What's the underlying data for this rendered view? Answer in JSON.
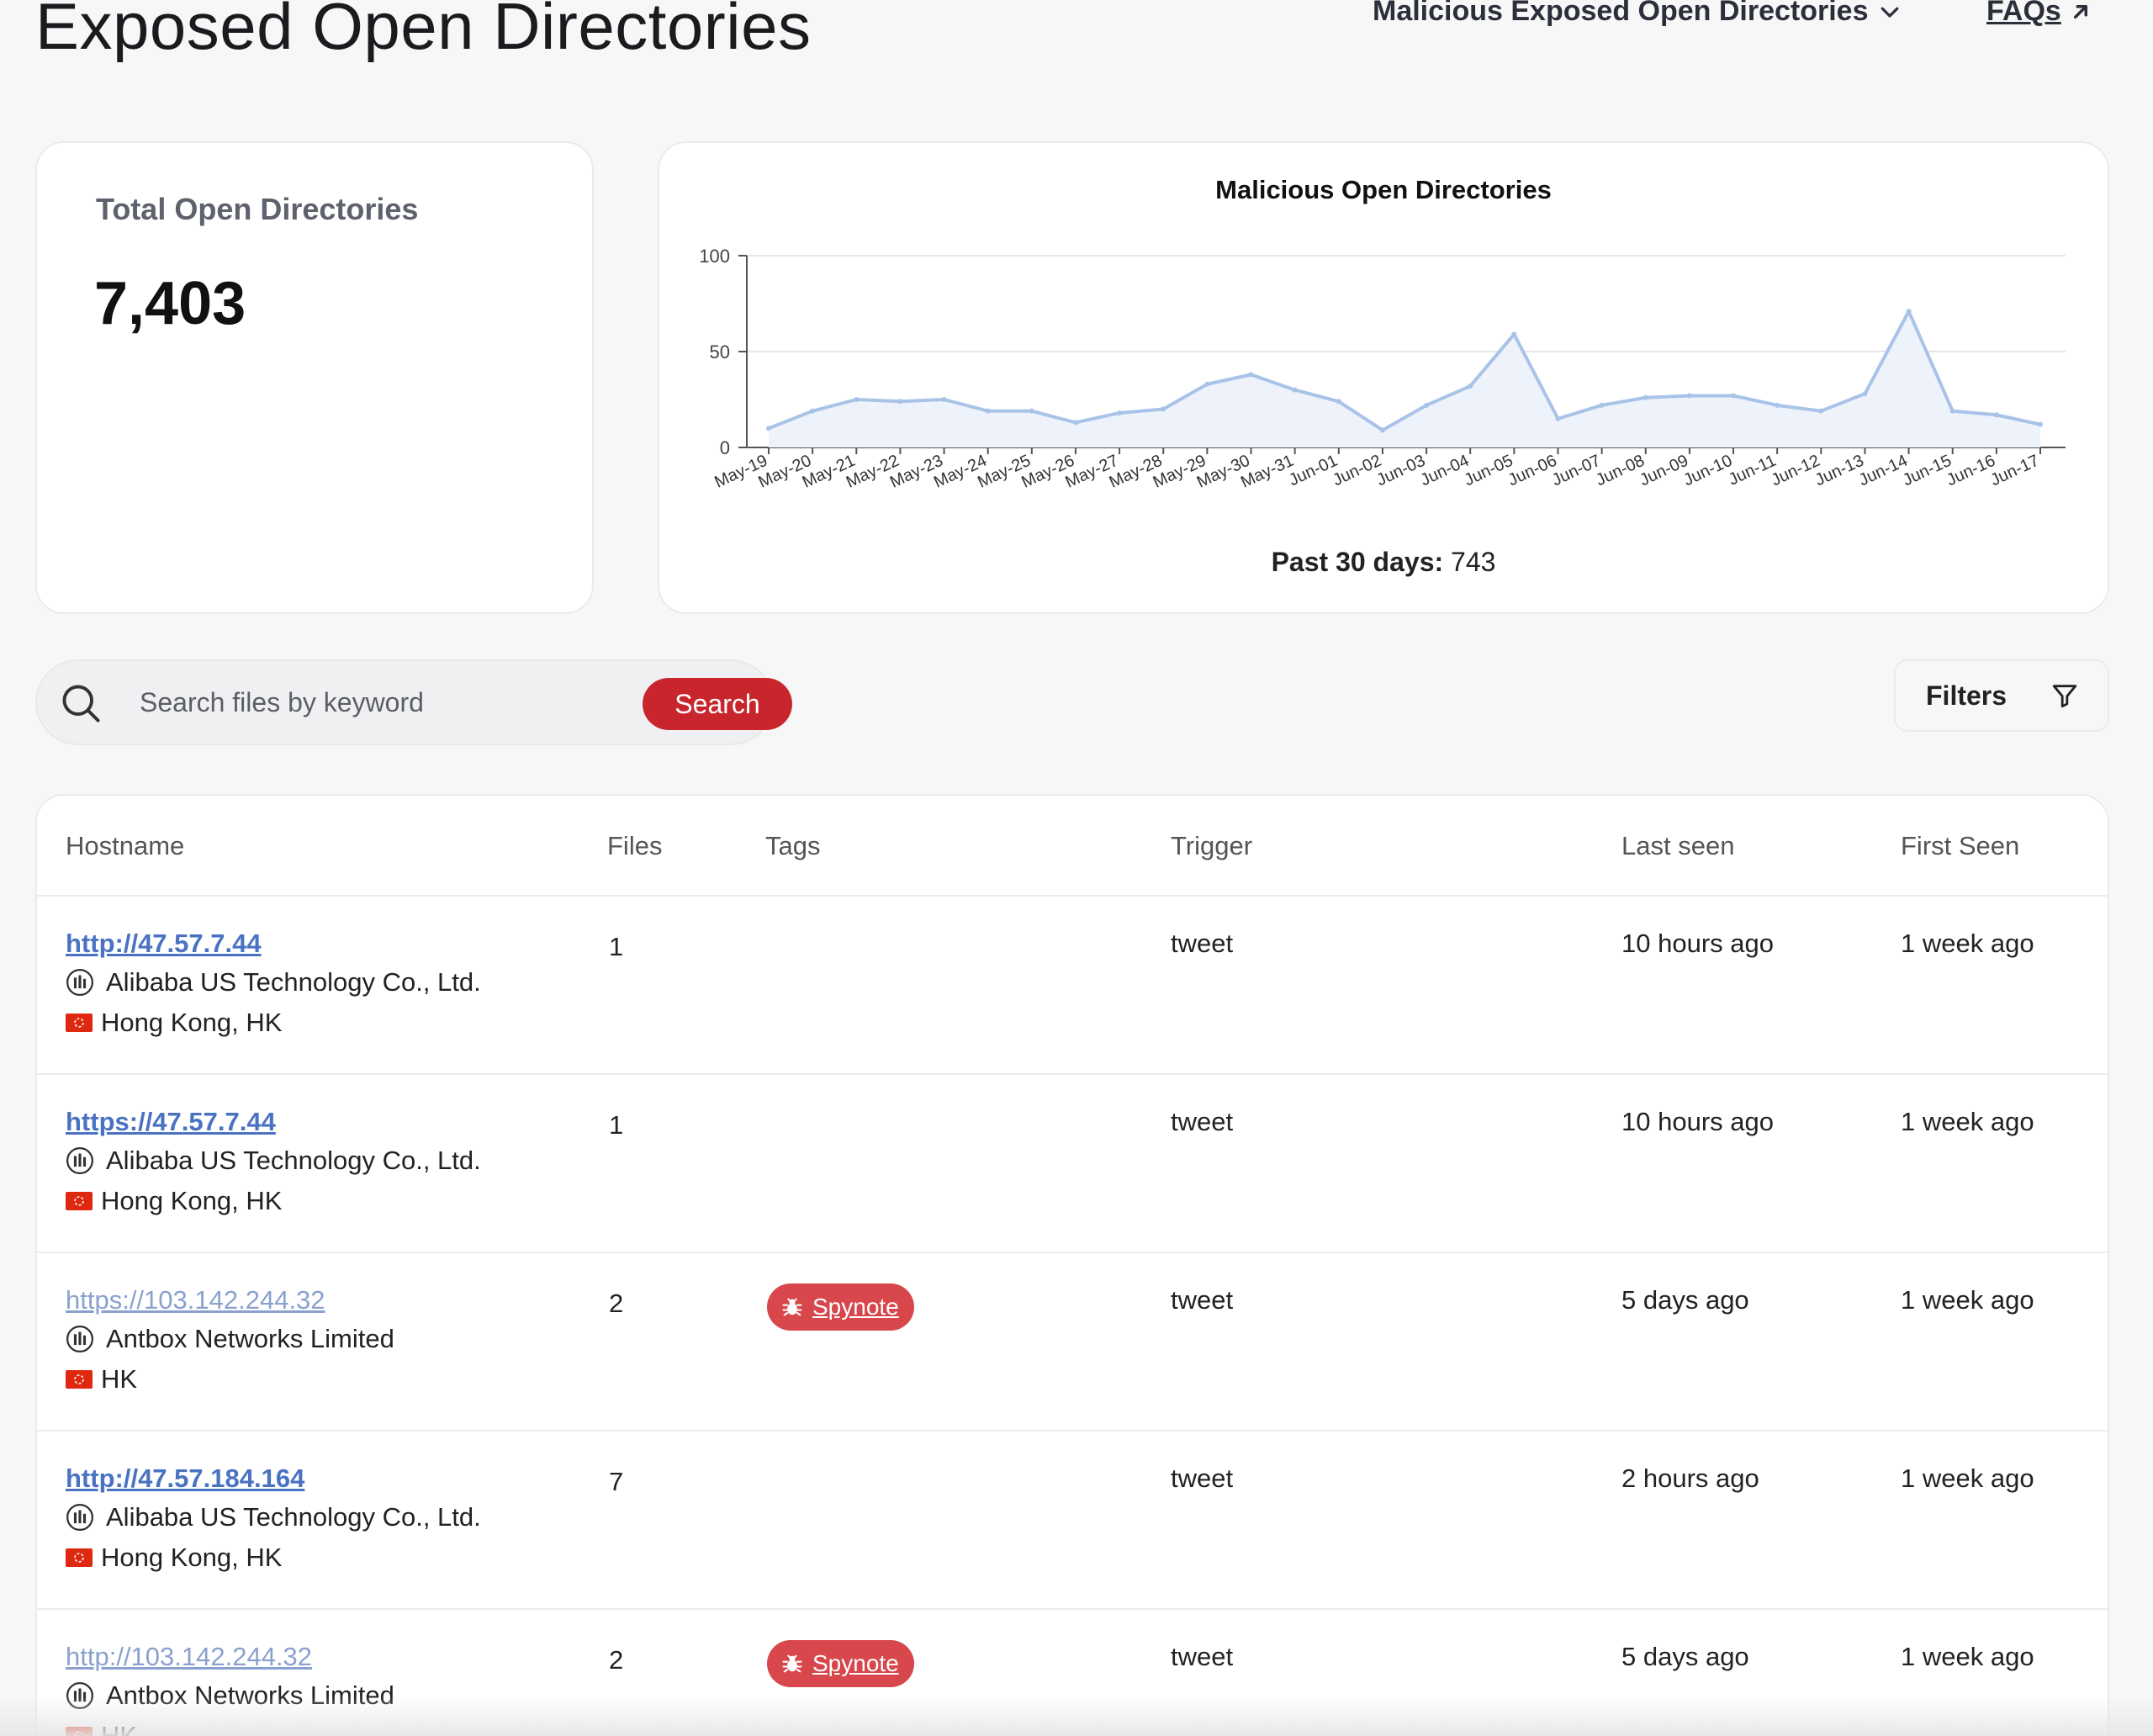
{
  "header": {
    "title": "Exposed Open Directories",
    "menu_label": "Malicious Exposed Open Directories",
    "faq_label": "FAQs"
  },
  "total_card": {
    "label": "Total Open Directories",
    "value": "7,403"
  },
  "chart_card": {
    "past_label": "Past 30 days:",
    "past_value": "743"
  },
  "chart_data": {
    "type": "area",
    "title": "Malicious Open Directories",
    "xlabel": "",
    "ylabel": "",
    "ylim": [
      0,
      100
    ],
    "yticks": [
      "0",
      "50",
      "100"
    ],
    "grid": true,
    "categories": [
      "May-19",
      "May-20",
      "May-21",
      "May-22",
      "May-23",
      "May-24",
      "May-25",
      "May-26",
      "May-27",
      "May-28",
      "May-29",
      "May-30",
      "May-31",
      "Jun-01",
      "Jun-02",
      "Jun-03",
      "Jun-04",
      "Jun-05",
      "Jun-06",
      "Jun-07",
      "Jun-08",
      "Jun-09",
      "Jun-10",
      "Jun-11",
      "Jun-12",
      "Jun-13",
      "Jun-14",
      "Jun-15",
      "Jun-16",
      "Jun-17"
    ],
    "series": [
      {
        "values": [
          10,
          19,
          25,
          24,
          25,
          19,
          19,
          13,
          18,
          20,
          33,
          38,
          30,
          24,
          9,
          22,
          32,
          59,
          15,
          22,
          26,
          27,
          27,
          22,
          19,
          28,
          71,
          19,
          17,
          12
        ]
      }
    ],
    "colors": {
      "line": "#a9c3e8",
      "fill": "#eef3fb",
      "grid": "#e6e6ea",
      "axis": "#555555"
    }
  },
  "search": {
    "placeholder": "Search files by keyword",
    "button_label": "Search"
  },
  "filters": {
    "label": "Filters"
  },
  "table": {
    "columns": {
      "hostname": "Hostname",
      "files": "Files",
      "tags": "Tags",
      "trigger": "Trigger",
      "last_seen": "Last seen",
      "first_seen": "First Seen"
    },
    "rows": [
      {
        "url": "http://47.57.7.44",
        "org": "Alibaba US Technology Co., Ltd.",
        "location": "Hong Kong, HK",
        "files": "1",
        "tag": "",
        "trigger": "tweet",
        "last_seen": "10 hours ago",
        "first_seen": "1 week ago"
      },
      {
        "url": "https://47.57.7.44",
        "org": "Alibaba US Technology Co., Ltd.",
        "location": "Hong Kong, HK",
        "files": "1",
        "tag": "",
        "trigger": "tweet",
        "last_seen": "10 hours ago",
        "first_seen": "1 week ago"
      },
      {
        "url": "https://103.142.244.32",
        "org": "Antbox Networks Limited",
        "location": "HK",
        "files": "2",
        "tag": "Spynote",
        "trigger": "tweet",
        "last_seen": "5 days ago",
        "first_seen": "1 week ago"
      },
      {
        "url": "http://47.57.184.164",
        "org": "Alibaba US Technology Co., Ltd.",
        "location": "Hong Kong, HK",
        "files": "7",
        "tag": "",
        "trigger": "tweet",
        "last_seen": "2 hours ago",
        "first_seen": "1 week ago"
      },
      {
        "url": "http://103.142.244.32",
        "org": "Antbox Networks Limited",
        "location": "HK",
        "files": "2",
        "tag": "Spynote",
        "trigger": "tweet",
        "last_seen": "5 days ago",
        "first_seen": "1 week ago"
      }
    ]
  },
  "icons": {
    "menu_chevron": "chevron-down-icon",
    "faq_arrow": "arrow-up-right-icon",
    "search": "search-icon",
    "filter": "filter-icon",
    "org": "building-icon",
    "flag": "hong-kong-flag-icon",
    "tag": "bug-icon"
  }
}
